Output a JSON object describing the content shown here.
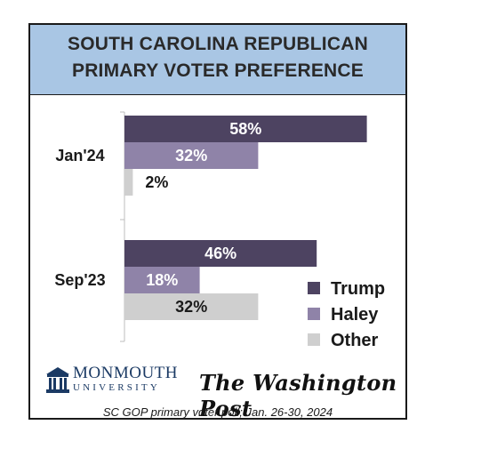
{
  "header": {
    "title_line1": "SOUTH CAROLINA REPUBLICAN",
    "title_line2": "PRIMARY VOTER PREFERENCE"
  },
  "chart_data": {
    "type": "bar",
    "orientation": "horizontal",
    "categories": [
      "Jan'24",
      "Sep'23"
    ],
    "series": [
      {
        "name": "Trump",
        "values": [
          58,
          46
        ],
        "color": "#4d4361"
      },
      {
        "name": "Haley",
        "values": [
          32,
          18
        ],
        "color": "#8f83a8"
      },
      {
        "name": "Other",
        "values": [
          2,
          32
        ],
        "color": "#cfcfcf"
      }
    ],
    "data_labels": [
      [
        "58%",
        "32%",
        "2%"
      ],
      [
        "46%",
        "18%",
        "32%"
      ]
    ],
    "legend": "bottom-right",
    "xlim": [
      0,
      100
    ],
    "grid": false
  },
  "logos": {
    "monmouth_name": "MONMOUTH",
    "monmouth_sub": "UNIVERSITY",
    "monmouth_icon": "building-icon",
    "washington_post": "The Washington Post"
  },
  "footer": "SC GOP primary voter poll;  Jan. 26-30, 2024"
}
